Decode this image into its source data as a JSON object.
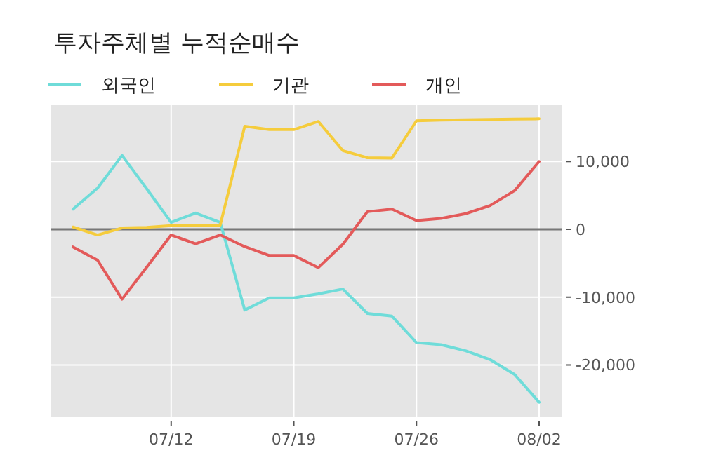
{
  "chart_data": {
    "type": "line",
    "title": "투자주체별 누적순매수",
    "categories": [
      null,
      null,
      null,
      null,
      "07/12",
      null,
      null,
      null,
      null,
      "07/19",
      null,
      null,
      null,
      null,
      "07/26",
      null,
      null,
      null,
      null,
      "08/02"
    ],
    "series": [
      {
        "name": "외국인",
        "color": "#6fdcd9",
        "values": [
          2970,
          6070,
          10900,
          6000,
          1030,
          2400,
          1030,
          -11900,
          -10100,
          -10100,
          -9500,
          -8800,
          -12400,
          -12800,
          -16700,
          -17000,
          -17900,
          -19200,
          -21400,
          -25500
        ]
      },
      {
        "name": "기관",
        "color": "#f5cc3c",
        "values": [
          340,
          -830,
          200,
          280,
          550,
          620,
          620,
          15200,
          14700,
          14700,
          15900,
          11600,
          10550,
          10500,
          16000,
          16100,
          16150,
          16200,
          16250,
          16300
        ]
      },
      {
        "name": "개인",
        "color": "#e35a5a",
        "values": [
          -2600,
          -4550,
          -10300,
          -5600,
          -830,
          -2140,
          -830,
          -2550,
          -3860,
          -3860,
          -5650,
          -2200,
          2600,
          2970,
          1300,
          1600,
          2300,
          3500,
          5700,
          10000
        ]
      }
    ],
    "ylim": [
      -27600,
      18300
    ],
    "yticks": [
      {
        "value": -20000,
        "label": "-20,000"
      },
      {
        "value": -10000,
        "label": "-10,000"
      },
      0,
      {
        "value": 10000,
        "label": "10,000"
      }
    ],
    "ref_lines": [
      {
        "axis": "y",
        "value": 0,
        "color": "#777777"
      }
    ],
    "grid": true,
    "legend": "top left"
  }
}
